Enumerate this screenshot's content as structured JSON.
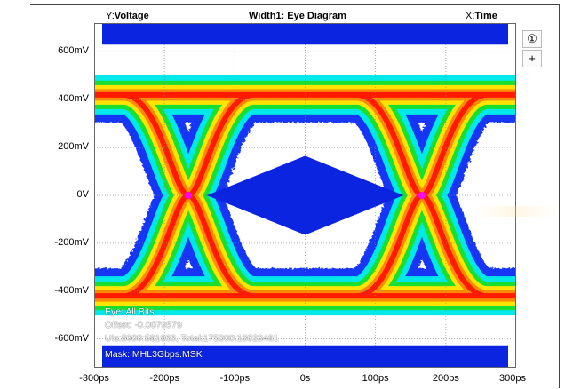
{
  "header": {
    "y_prefix": "Y:",
    "y_label": "Voltage",
    "title_prefix": "Width1: ",
    "title": "Eye Diagram",
    "x_prefix": "X:",
    "x_label": "Time"
  },
  "side_buttons": {
    "info_label": "①",
    "add_label": "+"
  },
  "overlay_info": {
    "line1": "Eye: All Bits",
    "line2": "Offset: -0.0079579",
    "line3": "UIs:8000:591966, Total:175000:13023461",
    "line4": "Mask: MHL3Gbps.MSK"
  },
  "colors": {
    "mask": "#0a24e0",
    "trace_blue": "#1436f5",
    "cyan": "#00e8e8",
    "green": "#19e030",
    "yellow": "#ffe400",
    "orange": "#ff8a00",
    "red": "#ff1a00",
    "magenta": "#ff00ff",
    "grid": "#888888"
  },
  "chart_data": {
    "type": "eye",
    "title": "Width1: Eye Diagram",
    "xlabel": "Time",
    "ylabel": "Voltage",
    "x_ticks": [
      "-300ps",
      "-200ps",
      "-100ps",
      "0s",
      "100ps",
      "200ps",
      "300ps"
    ],
    "x_tick_values": [
      -300,
      -200,
      -100,
      0,
      100,
      200,
      300
    ],
    "y_ticks": [
      "600mV",
      "400mV",
      "200mV",
      "0V",
      "-200mV",
      "-400mV",
      "-600mV"
    ],
    "y_tick_values": [
      600,
      400,
      200,
      0,
      -200,
      -400,
      -600
    ],
    "xlim": [
      -300,
      300
    ],
    "ylim": [
      -720,
      720
    ],
    "unit_interval_ps": 333,
    "crossings_ps": [
      -166,
      166
    ],
    "levels_mV": {
      "high": 420,
      "low": -420
    },
    "mask": {
      "center_diamond": [
        [
          -140,
          0
        ],
        [
          0,
          165
        ],
        [
          140,
          0
        ],
        [
          0,
          -165
        ]
      ],
      "top_band_mV": [
        630,
        720
      ],
      "bottom_band_mV": [
        -720,
        -630
      ]
    },
    "grid": true
  }
}
